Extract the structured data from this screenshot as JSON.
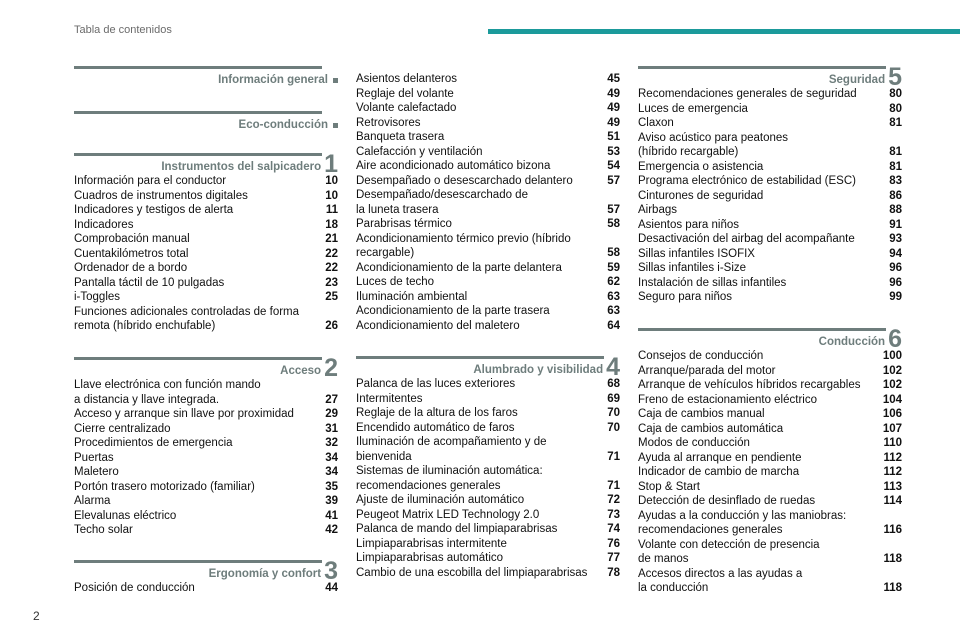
{
  "header": {
    "title": "Tabla de contenidos",
    "page_number": "2",
    "accent_color": "#1b9a9b"
  },
  "sections": [
    {
      "id": "info",
      "title": "Información general",
      "num": "",
      "square": true,
      "rows": []
    },
    {
      "id": "eco",
      "title": "Eco-conducción",
      "num": "",
      "square": true,
      "rows": []
    },
    {
      "id": "s1",
      "title": "Instrumentos del salpicadero",
      "num": "1",
      "rows": [
        {
          "t": "Información para el conductor",
          "p": "10"
        },
        {
          "t": "Cuadros de instrumentos digitales",
          "p": "10"
        },
        {
          "t": "Indicadores y testigos de alerta",
          "p": "11"
        },
        {
          "t": "Indicadores",
          "p": "18"
        },
        {
          "t": "Comprobación manual",
          "p": "21"
        },
        {
          "t": "Cuentakilómetros total",
          "p": "22"
        },
        {
          "t": "Ordenador de a bordo",
          "p": "22"
        },
        {
          "t": "Pantalla táctil de 10 pulgadas",
          "p": "23"
        },
        {
          "t": "i-Toggles",
          "p": "25"
        },
        {
          "t": "Funciones adicionales controladas de forma",
          "p": ""
        },
        {
          "t": "remota (híbrido enchufable)",
          "p": "26"
        }
      ]
    },
    {
      "id": "s2",
      "title": "Acceso",
      "num": "2",
      "rows": [
        {
          "t": "Llave electrónica con función mando",
          "p": ""
        },
        {
          "t": "a distancia y llave integrada.",
          "p": "27"
        },
        {
          "t": "Acceso y arranque sin llave por proximidad",
          "p": "29"
        },
        {
          "t": "Cierre centralizado",
          "p": "31"
        },
        {
          "t": "Procedimientos de emergencia",
          "p": "32"
        },
        {
          "t": "Puertas",
          "p": "34"
        },
        {
          "t": "Maletero",
          "p": "34"
        },
        {
          "t": "Portón trasero motorizado (familiar)",
          "p": "35"
        },
        {
          "t": "Alarma",
          "p": "39"
        },
        {
          "t": "Elevalunas eléctrico",
          "p": "41"
        },
        {
          "t": "Techo solar",
          "p": "42"
        }
      ]
    },
    {
      "id": "s3",
      "title": "Ergonomía y confort",
      "num": "3",
      "rows": [
        {
          "t": "Posición de conducción",
          "p": "44"
        }
      ]
    },
    {
      "id": "s3b",
      "title": "",
      "num": "",
      "rows": [
        {
          "t": "Asientos delanteros",
          "p": "45"
        },
        {
          "t": "Reglaje del volante",
          "p": "49"
        },
        {
          "t": "Volante calefactado",
          "p": "49"
        },
        {
          "t": "Retrovisores",
          "p": "49"
        },
        {
          "t": "Banqueta trasera",
          "p": "51"
        },
        {
          "t": "Calefacción y ventilación",
          "p": "53"
        },
        {
          "t": "Aire acondicionado automático bizona",
          "p": "54"
        },
        {
          "t": "Desempañado o desescarchado delantero",
          "p": "57"
        },
        {
          "t": "Desempañado/desescarchado de",
          "p": ""
        },
        {
          "t": "la luneta trasera",
          "p": "57"
        },
        {
          "t": "Parabrisas térmico",
          "p": "58"
        },
        {
          "t": "Acondicionamiento térmico previo (híbrido",
          "p": ""
        },
        {
          "t": "recargable)",
          "p": "58"
        },
        {
          "t": "Acondicionamiento de la parte delantera",
          "p": "59"
        },
        {
          "t": "Luces de techo",
          "p": "62"
        },
        {
          "t": "Iluminación ambiental",
          "p": "63"
        },
        {
          "t": "Acondicionamiento de la parte trasera",
          "p": "63"
        },
        {
          "t": "Acondicionamiento del maletero",
          "p": "64"
        }
      ]
    },
    {
      "id": "s4",
      "title": "Alumbrado y visibilidad",
      "num": "4",
      "rows": [
        {
          "t": "Palanca de las luces exteriores",
          "p": "68"
        },
        {
          "t": "Intermitentes",
          "p": "69"
        },
        {
          "t": "Reglaje de la altura de los faros",
          "p": "70"
        },
        {
          "t": "Encendido automático de faros",
          "p": "70"
        },
        {
          "t": "Iluminación de acompañamiento y de",
          "p": ""
        },
        {
          "t": "bienvenida",
          "p": "71"
        },
        {
          "t": "Sistemas de iluminación automática:",
          "p": ""
        },
        {
          "t": "recomendaciones generales",
          "p": "71"
        },
        {
          "t": "Ajuste de iluminación automático",
          "p": "72"
        },
        {
          "t": "Peugeot Matrix LED Technology 2.0",
          "p": "73"
        },
        {
          "t": "Palanca de mando del limpiaparabrisas",
          "p": "74"
        },
        {
          "t": "Limpiaparabrisas intermitente",
          "p": "76"
        },
        {
          "t": "Limpiaparabrisas automático",
          "p": "77"
        },
        {
          "t": "Cambio de una escobilla del limpiaparabrisas",
          "p": "78"
        }
      ]
    },
    {
      "id": "s5",
      "title": "Seguridad",
      "num": "5",
      "rows": [
        {
          "t": "Recomendaciones generales de seguridad",
          "p": "80"
        },
        {
          "t": "Luces de emergencia",
          "p": "80"
        },
        {
          "t": "Claxon",
          "p": "81"
        },
        {
          "t": "Aviso acústico para peatones",
          "p": ""
        },
        {
          "t": "(híbrido recargable)",
          "p": "81"
        },
        {
          "t": "Emergencia o asistencia",
          "p": "81"
        },
        {
          "t": "Programa electrónico de estabilidad (ESC)",
          "p": "83"
        },
        {
          "t": "Cinturones de seguridad",
          "p": "86"
        },
        {
          "t": "Airbags",
          "p": "88"
        },
        {
          "t": "Asientos para niños",
          "p": "91"
        },
        {
          "t": "Desactivación del airbag del acompañante",
          "p": "93"
        },
        {
          "t": "Sillas infantiles ISOFIX",
          "p": "94"
        },
        {
          "t": "Sillas infantiles i-Size",
          "p": "96"
        },
        {
          "t": "Instalación de sillas infantiles",
          "p": "96"
        },
        {
          "t": "Seguro para niños",
          "p": "99"
        }
      ]
    },
    {
      "id": "s6",
      "title": "Conducción",
      "num": "6",
      "rows": [
        {
          "t": "Consejos de conducción",
          "p": "100"
        },
        {
          "t": "Arranque/parada del motor",
          "p": "102"
        },
        {
          "t": "Arranque de vehículos híbridos recargables",
          "p": "102"
        },
        {
          "t": "Freno de estacionamiento eléctrico",
          "p": "104"
        },
        {
          "t": "Caja de cambios manual",
          "p": "106"
        },
        {
          "t": "Caja de cambios automática",
          "p": "107"
        },
        {
          "t": "Modos de conducción",
          "p": "110"
        },
        {
          "t": "Ayuda al arranque en pendiente",
          "p": "112"
        },
        {
          "t": "Indicador de cambio de marcha",
          "p": "112"
        },
        {
          "t": "Stop & Start",
          "p": "113"
        },
        {
          "t": "Detección de desinflado de ruedas",
          "p": "114"
        },
        {
          "t": "Ayudas a la conducción y las maniobras:",
          "p": ""
        },
        {
          "t": "recomendaciones generales",
          "p": "116"
        },
        {
          "t": "Volante con detección de presencia",
          "p": ""
        },
        {
          "t": "de manos",
          "p": "118"
        },
        {
          "t": "Accesos directos a las ayudas a",
          "p": ""
        },
        {
          "t": "la conducción",
          "p": "118"
        }
      ]
    }
  ]
}
